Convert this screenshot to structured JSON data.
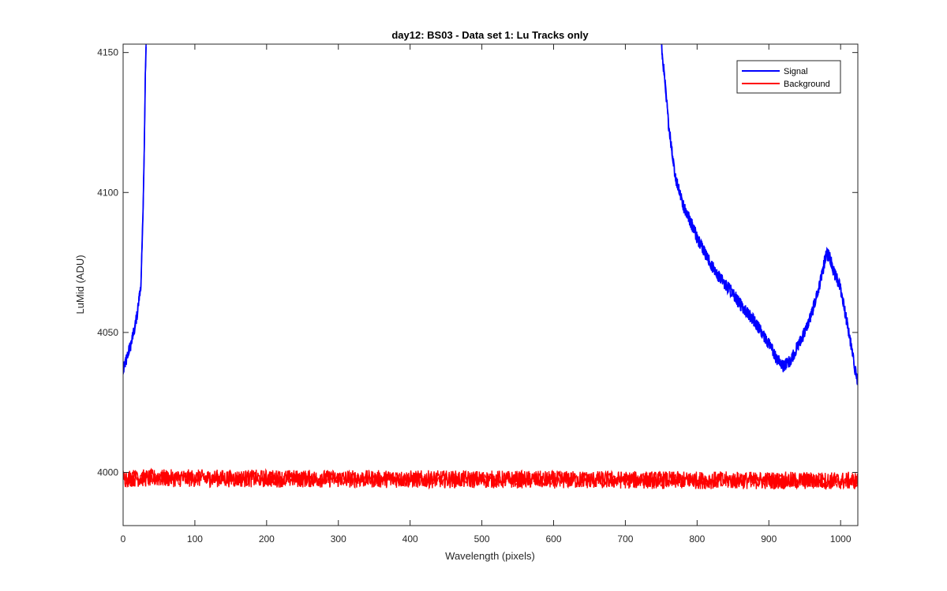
{
  "chart_data": {
    "type": "line",
    "title": "day12: BS03 - Data set 1: Lu Tracks only",
    "xlabel": "Wavelength (pixels)",
    "ylabel": "LuMid (ADU)",
    "xlim": [
      0,
      1024
    ],
    "ylim": [
      3981,
      4153
    ],
    "xticks": [
      0,
      100,
      200,
      300,
      400,
      500,
      600,
      700,
      800,
      900,
      1000
    ],
    "yticks": [
      4000,
      4050,
      4100,
      4150
    ],
    "grid": false,
    "legend_position": "top-right",
    "series": [
      {
        "name": "Signal",
        "color": "#0000ff",
        "segments": [
          {
            "x": [
              0,
              5,
              10,
              15,
              20,
              25,
              28,
              30,
              31,
              32
            ],
            "y": [
              4036,
              4041,
              4045,
              4050,
              4057,
              4068,
              4095,
              4125,
              4142,
              4153
            ]
          },
          {
            "x": [
              750,
              755,
              760,
              765,
              770,
              780,
              790,
              800,
              810,
              820,
              830,
              840,
              850,
              860,
              870,
              880,
              890,
              900,
              910,
              920,
              930,
              940,
              950,
              960,
              970,
              980,
              985,
              990,
              1000,
              1010,
              1020,
              1024
            ],
            "y": [
              4153,
              4140,
              4125,
              4115,
              4105,
              4096,
              4090,
              4084,
              4079,
              4074,
              4070,
              4067,
              4064,
              4060,
              4057,
              4054,
              4050,
              4046,
              4041,
              4038,
              4040,
              4045,
              4050,
              4057,
              4066,
              4078,
              4077,
              4072,
              4066,
              4052,
              4037,
              4032
            ]
          }
        ]
      },
      {
        "name": "Background",
        "color": "#ff0000",
        "x": [
          0,
          1024
        ],
        "y": [
          3998,
          3997
        ]
      }
    ]
  }
}
